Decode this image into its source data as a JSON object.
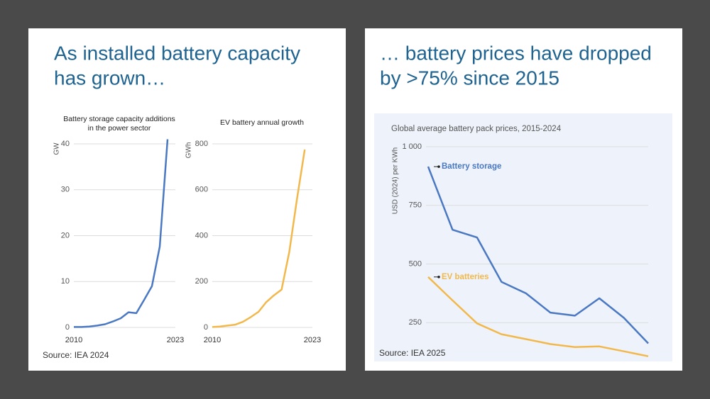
{
  "panels": [
    {
      "title": [
        "As installed battery capacity",
        "has grown…"
      ],
      "source": "Source: IEA 2024"
    },
    {
      "title": [
        "… battery prices have dropped",
        "by >75% since 2015"
      ],
      "source": "Source: IEA 2025"
    }
  ],
  "chart_data": [
    {
      "type": "line",
      "title": [
        "Battery storage capacity additions",
        "in the power sector"
      ],
      "y_label": "GW",
      "x": [
        2010,
        2011,
        2012,
        2013,
        2014,
        2015,
        2016,
        2017,
        2018,
        2019,
        2020,
        2021,
        2022,
        2023
      ],
      "values": [
        0.1,
        0.1,
        0.2,
        0.4,
        0.7,
        1.3,
        2,
        3.3,
        3.1,
        6,
        9,
        17.6,
        41,
        null
      ],
      "color": "#4a78c2",
      "xlim": [
        2010,
        2023
      ],
      "xticks": [
        2010,
        2023
      ],
      "ylim": [
        0,
        40
      ],
      "yticks": [
        0,
        10,
        20,
        30,
        40
      ],
      "grid": true
    },
    {
      "type": "line",
      "title": [
        "EV battery annual growth"
      ],
      "y_label": "GWh",
      "x": [
        2010,
        2011,
        2012,
        2013,
        2014,
        2015,
        2016,
        2017,
        2018,
        2019,
        2020,
        2021,
        2022,
        2023
      ],
      "values": [
        2,
        4,
        8,
        12,
        25,
        45,
        68,
        110,
        140,
        165,
        330,
        560,
        775,
        null
      ],
      "color": "#f2b84b",
      "xlim": [
        2010,
        2023
      ],
      "xticks": [
        2010,
        2023
      ],
      "ylim": [
        0,
        800
      ],
      "yticks": [
        0,
        200,
        400,
        600,
        800
      ],
      "grid": true
    },
    {
      "type": "line",
      "title": [
        "Global average battery pack prices, 2015-2024"
      ],
      "y_label": "USD (2024) per KWh",
      "x": [
        2015,
        2016,
        2017,
        2018,
        2019,
        2020,
        2021,
        2022,
        2023,
        2024
      ],
      "series": [
        {
          "name": "Battery storage",
          "color": "#4a78c2",
          "values": [
            915,
            646,
            613,
            424,
            375,
            293,
            280,
            354,
            271,
            162
          ]
        },
        {
          "name": "EV batteries",
          "color": "#f2b84b",
          "values": [
            445,
            345,
            247,
            201,
            180,
            159,
            146,
            149,
            128,
            107
          ]
        }
      ],
      "xlim": [
        2015,
        2024
      ],
      "ylim": [
        100,
        1000
      ],
      "yticks": [
        250,
        500,
        750,
        {
          "value": 1000,
          "label": "1 000"
        }
      ],
      "grid": true
    }
  ]
}
